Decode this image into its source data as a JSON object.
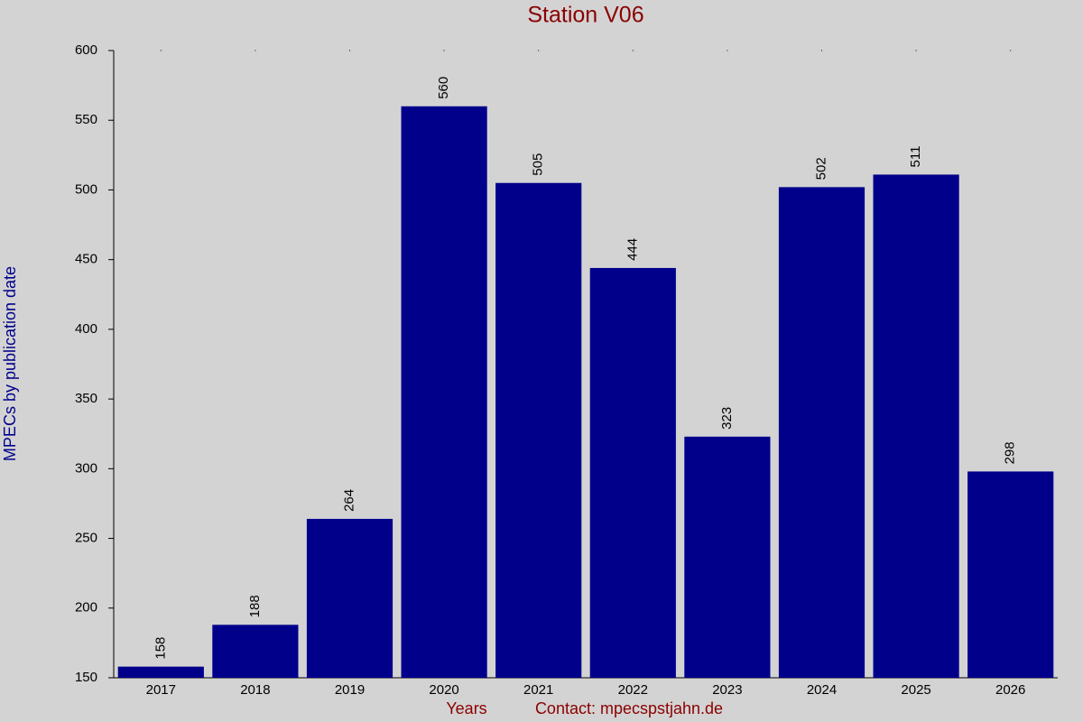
{
  "chart_data": {
    "type": "bar",
    "title": "Station V06",
    "y_label": "MPECs by publication date",
    "x_label": "Years",
    "annotation": "Contact: mpecspstjahn.de",
    "categories": [
      "2017",
      "2018",
      "2019",
      "2020",
      "2021",
      "2022",
      "2023",
      "2024",
      "2025",
      "2026"
    ],
    "values": [
      158,
      188,
      264,
      560,
      505,
      444,
      323,
      502,
      511,
      298
    ],
    "color": "#00008b",
    "ylim": [
      150,
      600
    ],
    "yticks": [
      150,
      200,
      250,
      300,
      350,
      400,
      450,
      500,
      550,
      600
    ]
  }
}
